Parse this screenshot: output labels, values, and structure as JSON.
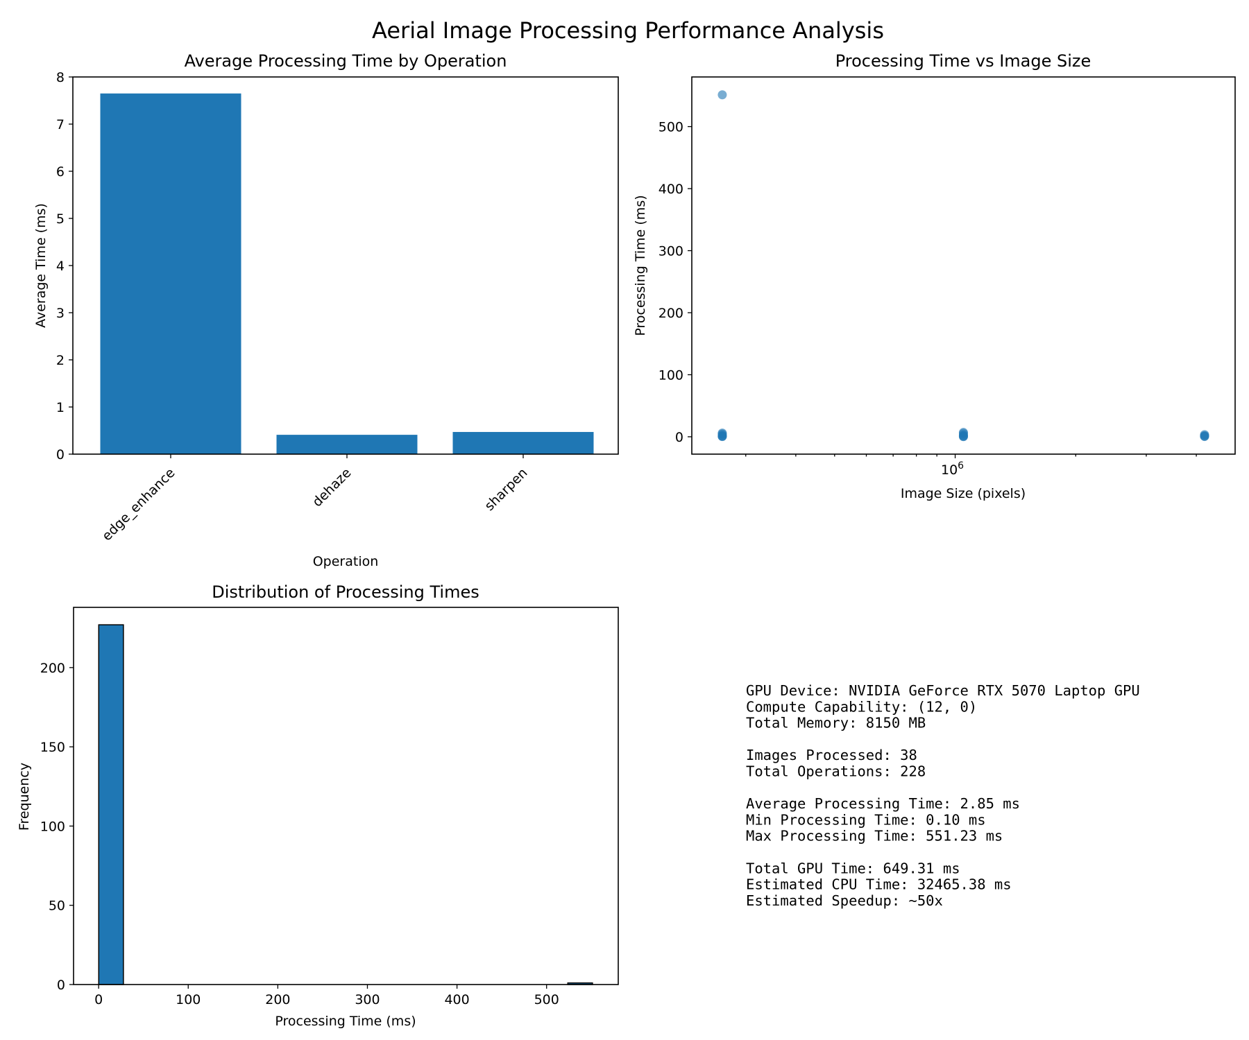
{
  "suptitle": "Aerial Image Processing Performance Analysis",
  "colors": {
    "bar": "#1f77b4",
    "scatter": "#1f77b4",
    "edge": "#000000"
  },
  "chart_data": [
    {
      "type": "bar",
      "title": "Average Processing Time by Operation",
      "xlabel": "Operation",
      "ylabel": "Average Time (ms)",
      "categories": [
        "edge_enhance",
        "dehaze",
        "sharpen"
      ],
      "values": [
        7.65,
        0.41,
        0.47
      ],
      "ylim": [
        0,
        8
      ],
      "yticks": [
        0,
        1,
        2,
        3,
        4,
        5,
        6,
        7,
        8
      ],
      "xtick_rotation": 45
    },
    {
      "type": "scatter",
      "title": "Processing Time vs Image Size",
      "xlabel": "Image Size (pixels)",
      "ylabel": "Processing Time (ms)",
      "xscale": "log",
      "xlim": [
        220000,
        5000000
      ],
      "ylim": [
        -28,
        580
      ],
      "yticks": [
        0,
        100,
        200,
        300,
        400,
        500
      ],
      "xtick_major": [
        {
          "value": 1000000,
          "base": "10",
          "exp": "6"
        }
      ],
      "xtick_minor": [
        300000,
        400000,
        500000,
        600000,
        700000,
        800000,
        900000,
        2000000,
        3000000,
        4000000
      ],
      "points": [
        {
          "x": 262144,
          "y": 551.23
        },
        {
          "x": 262144,
          "y": 0.3
        },
        {
          "x": 262144,
          "y": 0.6
        },
        {
          "x": 262144,
          "y": 1.2
        },
        {
          "x": 262144,
          "y": 2.8
        },
        {
          "x": 262144,
          "y": 4.5
        },
        {
          "x": 262144,
          "y": 6.0
        },
        {
          "x": 1048576,
          "y": 0.2
        },
        {
          "x": 1048576,
          "y": 0.5
        },
        {
          "x": 1048576,
          "y": 1.5
        },
        {
          "x": 1048576,
          "y": 3.0
        },
        {
          "x": 1048576,
          "y": 5.5
        },
        {
          "x": 1048576,
          "y": 7.0
        },
        {
          "x": 4194304,
          "y": 0.4
        },
        {
          "x": 4194304,
          "y": 0.9
        },
        {
          "x": 4194304,
          "y": 1.8
        },
        {
          "x": 4194304,
          "y": 3.5
        }
      ]
    },
    {
      "type": "histogram",
      "title": "Distribution of Processing Times",
      "xlabel": "Processing Time (ms)",
      "ylabel": "Frequency",
      "xlim": [
        -28,
        580
      ],
      "ylim": [
        0,
        238
      ],
      "xticks": [
        0,
        100,
        200,
        300,
        400,
        500
      ],
      "yticks": [
        0,
        50,
        100,
        150,
        200
      ],
      "bins": [
        {
          "start": 0.1,
          "end": 27.66,
          "count": 227
        },
        {
          "start": 523.67,
          "end": 551.23,
          "count": 1
        }
      ]
    }
  ],
  "stats_lines": [
    "GPU Device: NVIDIA GeForce RTX 5070 Laptop GPU",
    "Compute Capability: (12, 0)",
    "Total Memory: 8150 MB",
    "",
    "Images Processed: 38",
    "Total Operations: 228",
    "",
    "Average Processing Time: 2.85 ms",
    "Min Processing Time: 0.10 ms",
    "Max Processing Time: 551.23 ms",
    "",
    "Total GPU Time: 649.31 ms",
    "Estimated CPU Time: 32465.38 ms",
    "Estimated Speedup: ~50x"
  ]
}
